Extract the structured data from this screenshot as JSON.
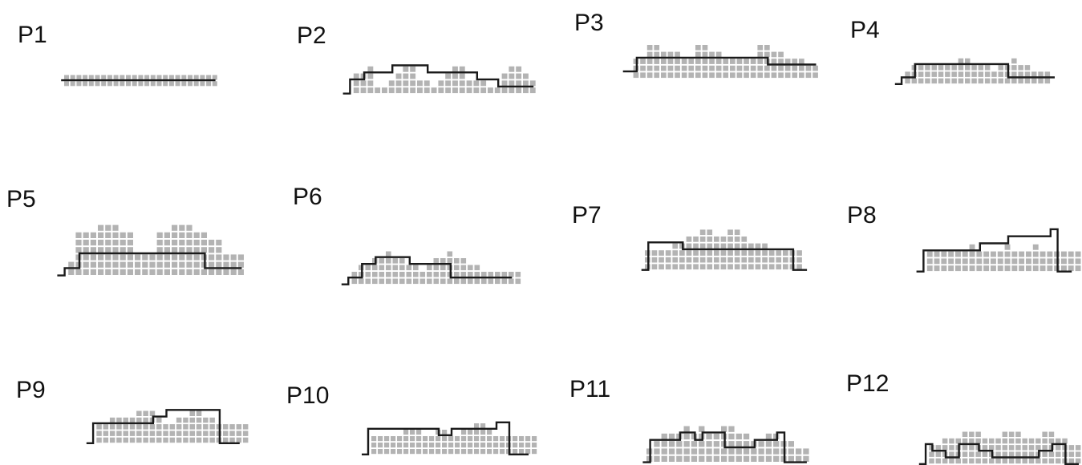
{
  "colors": {
    "cell": "#b3b3b3",
    "outline": "#1a1a1a",
    "background": "#ffffff"
  },
  "panels": [
    {
      "label": "P1",
      "columns": [
        2,
        2,
        2,
        2,
        2,
        2,
        2,
        2,
        2,
        2,
        2,
        2,
        2,
        2,
        2,
        2,
        2,
        2,
        2,
        2,
        2,
        2,
        2,
        2,
        2
      ],
      "outline": [
        1,
        1,
        1,
        1,
        1,
        1,
        1,
        1,
        1,
        1,
        1,
        1,
        1,
        1,
        1,
        1,
        1,
        1,
        1,
        1,
        1,
        1,
        1,
        1,
        1
      ]
    },
    {
      "label": "P2",
      "columns": [
        0,
        3,
        3,
        4,
        1,
        1,
        2,
        3,
        4,
        4,
        2,
        2,
        1,
        2,
        3,
        4,
        4,
        2,
        2,
        2,
        1,
        1,
        3,
        4,
        4,
        3,
        2,
        0
      ],
      "outline": [
        0,
        2,
        2,
        3,
        3,
        3,
        3,
        4,
        4,
        4,
        4,
        4,
        3,
        3,
        3,
        3,
        3,
        3,
        3,
        2,
        2,
        2,
        1,
        1,
        1,
        1,
        1
      ]
    },
    {
      "label": "P3",
      "columns": [
        0,
        3,
        3,
        5,
        5,
        4,
        4,
        4,
        3,
        3,
        5,
        5,
        4,
        4,
        3,
        3,
        3,
        3,
        3,
        5,
        5,
        4,
        4,
        3,
        3,
        3,
        2,
        2
      ],
      "outline": [
        1,
        1,
        3,
        3,
        3,
        3,
        3,
        3,
        3,
        3,
        3,
        3,
        3,
        3,
        3,
        3,
        3,
        3,
        3,
        3,
        3,
        2,
        2,
        2,
        2,
        2,
        2,
        2
      ]
    },
    {
      "label": "P4",
      "columns": [
        0,
        2,
        3,
        3,
        3,
        3,
        3,
        3,
        3,
        4,
        4,
        3,
        3,
        3,
        2,
        3,
        3,
        4,
        3,
        3,
        2,
        2,
        2,
        0
      ],
      "outline": [
        0,
        1,
        1,
        3,
        3,
        3,
        3,
        3,
        3,
        3,
        3,
        3,
        3,
        3,
        3,
        3,
        3,
        1,
        1,
        1,
        1,
        1,
        1,
        1
      ]
    },
    {
      "label": "P5",
      "columns": [
        0,
        2,
        6,
        6,
        6,
        7,
        7,
        7,
        6,
        6,
        3,
        3,
        3,
        6,
        6,
        7,
        7,
        7,
        6,
        6,
        5,
        5,
        3,
        3,
        3
      ],
      "outline": [
        0,
        1,
        1,
        3,
        3,
        3,
        3,
        3,
        3,
        3,
        3,
        3,
        3,
        3,
        3,
        3,
        3,
        3,
        3,
        3,
        1,
        1,
        1,
        1,
        1
      ]
    },
    {
      "label": "P6",
      "columns": [
        0,
        2,
        3,
        3,
        4,
        4,
        5,
        4,
        4,
        3,
        3,
        2,
        3,
        4,
        4,
        5,
        4,
        4,
        3,
        3,
        2,
        2,
        2,
        2,
        2,
        2
      ],
      "outline": [
        0,
        1,
        1,
        3,
        3,
        4,
        4,
        4,
        4,
        4,
        3,
        3,
        3,
        3,
        3,
        3,
        1,
        1,
        1,
        1,
        1,
        1,
        1,
        1,
        1
      ]
    },
    {
      "label": "P7",
      "columns": [
        3,
        3,
        3,
        3,
        4,
        4,
        5,
        5,
        6,
        6,
        5,
        5,
        6,
        6,
        5,
        4,
        4,
        4,
        3,
        3,
        3,
        3,
        3
      ],
      "outline": [
        0,
        4,
        4,
        4,
        4,
        4,
        3,
        3,
        3,
        3,
        3,
        3,
        3,
        3,
        3,
        3,
        3,
        3,
        3,
        3,
        3,
        3,
        0,
        0
      ]
    },
    {
      "label": "P8",
      "columns": [
        0,
        3,
        3,
        3,
        3,
        3,
        3,
        4,
        3,
        3,
        3,
        3,
        4,
        3,
        3,
        3,
        4,
        3,
        3,
        3,
        3,
        3,
        3
      ],
      "outline": [
        0,
        3,
        3,
        3,
        3,
        3,
        3,
        3,
        3,
        4,
        4,
        4,
        4,
        5,
        5,
        5,
        5,
        5,
        5,
        6,
        0,
        0
      ]
    },
    {
      "label": "P9",
      "columns": [
        0,
        3,
        3,
        4,
        4,
        4,
        4,
        5,
        5,
        5,
        4,
        3,
        3,
        4,
        4,
        5,
        5,
        4,
        4,
        3,
        3,
        3,
        3,
        3
      ],
      "outline": [
        0,
        3,
        3,
        3,
        3,
        3,
        3,
        3,
        3,
        3,
        4,
        4,
        5,
        5,
        5,
        5,
        5,
        5,
        5,
        5,
        0,
        0,
        0
      ]
    },
    {
      "label": "P10",
      "columns": [
        0,
        3,
        3,
        3,
        3,
        3,
        4,
        4,
        4,
        3,
        3,
        4,
        4,
        3,
        3,
        4,
        4,
        5,
        5,
        4,
        3,
        3,
        3,
        3,
        3,
        3,
        3
      ],
      "outline": [
        0,
        4,
        4,
        4,
        4,
        4,
        4,
        4,
        4,
        4,
        4,
        4,
        3,
        3,
        4,
        4,
        4,
        4,
        4,
        4,
        4,
        5,
        5,
        0,
        0,
        0
      ]
    },
    {
      "label": "P11",
      "columns": [
        2,
        3,
        4,
        4,
        4,
        5,
        4,
        5,
        4,
        4,
        5,
        5,
        4,
        4,
        3,
        3,
        4,
        4,
        3,
        3,
        2,
        2
      ],
      "outline": [
        0,
        3,
        3,
        3,
        3,
        4,
        4,
        3,
        4,
        4,
        4,
        2,
        2,
        2,
        2,
        3,
        3,
        3,
        4,
        0,
        0,
        0
      ]
    },
    {
      "label": "P12",
      "columns": [
        0,
        3,
        3,
        4,
        4,
        4,
        5,
        5,
        5,
        4,
        4,
        4,
        5,
        5,
        5,
        4,
        4,
        4,
        5,
        5,
        4,
        4,
        3,
        3,
        3
      ],
      "outline": [
        0,
        3,
        2,
        2,
        1,
        1,
        3,
        3,
        3,
        2,
        2,
        1,
        1,
        1,
        1,
        1,
        1,
        1,
        2,
        2,
        3,
        3,
        0,
        0
      ]
    }
  ]
}
